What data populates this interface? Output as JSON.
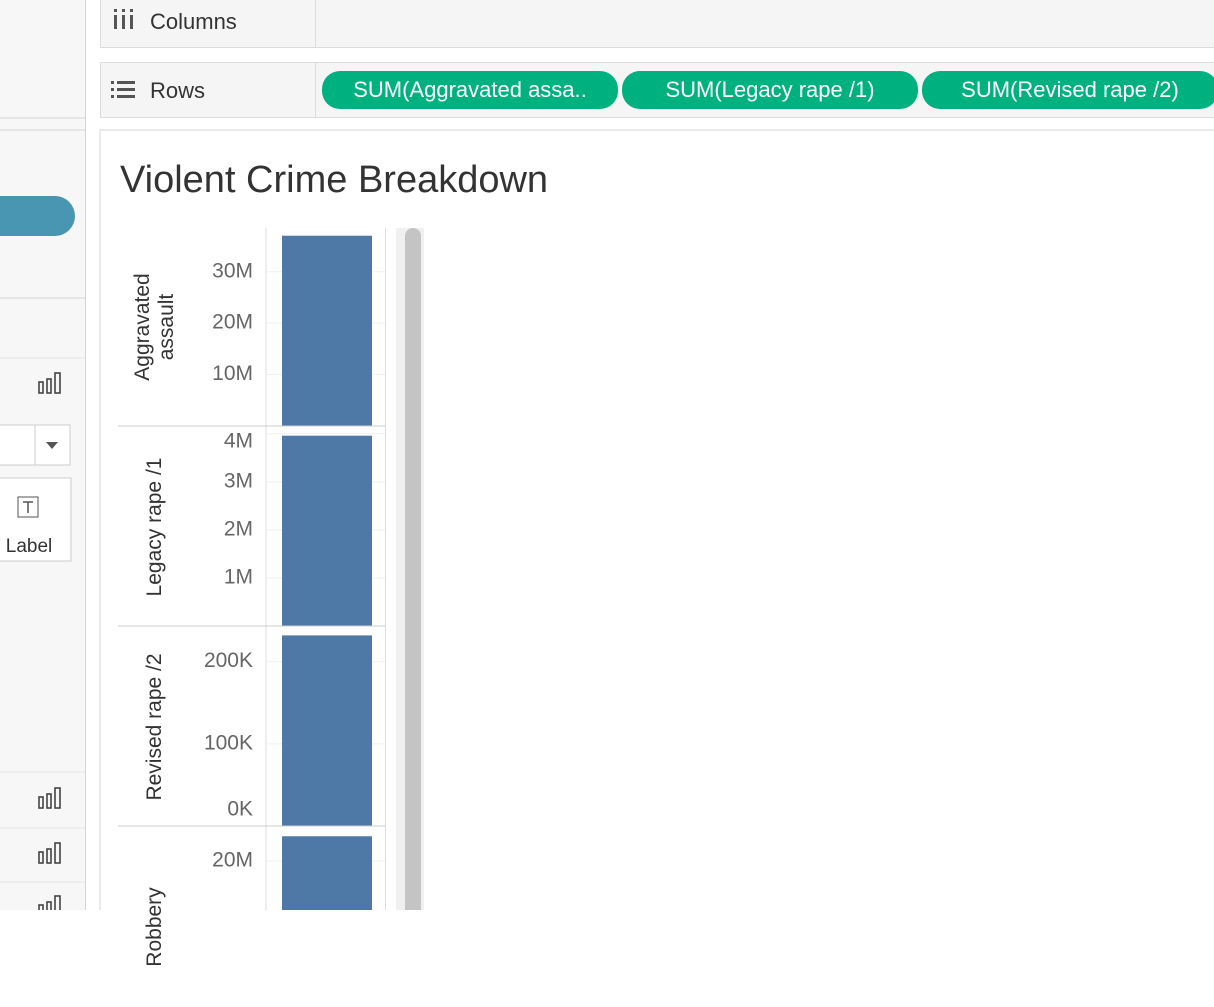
{
  "shelves": {
    "columns": "Columns",
    "rows": "Rows",
    "row_pills": [
      "SUM(Aggravated assa..",
      "SUM(Legacy rape /1)",
      "SUM(Revised rape /2)"
    ]
  },
  "marks_card": {
    "label": "Label"
  },
  "sheet": {
    "title": "Violent Crime Breakdown"
  },
  "chart_data": [
    {
      "type": "bar",
      "ylabel": "Aggravated assault",
      "categories": [
        null
      ],
      "values": [
        37000000
      ],
      "color": "#4e79a7",
      "ylim": [
        0,
        38500000
      ],
      "grid": true,
      "yticks": [
        {
          "value": 10000000,
          "label": "10M"
        },
        {
          "value": 20000000,
          "label": "20M"
        },
        {
          "value": 30000000,
          "label": "30M"
        }
      ]
    },
    {
      "type": "bar",
      "ylabel": "Legacy rape /1",
      "categories": [
        null
      ],
      "values": [
        3960000
      ],
      "color": "#4e79a7",
      "ylim": [
        0,
        4120000
      ],
      "grid": true,
      "yticks": [
        {
          "value": 1000000,
          "label": "1M"
        },
        {
          "value": 2000000,
          "label": "2M"
        },
        {
          "value": 3000000,
          "label": "3M"
        },
        {
          "value": 4000000,
          "label": "4M"
        }
      ]
    },
    {
      "type": "bar",
      "ylabel": "Revised rape /2",
      "categories": [
        null
      ],
      "values": [
        232000
      ],
      "color": "#4e79a7",
      "ylim": [
        0,
        241000
      ],
      "grid": true,
      "yticks": [
        {
          "value": 0,
          "label": "0K"
        },
        {
          "value": 100000,
          "label": "100K"
        },
        {
          "value": 200000,
          "label": "200K"
        }
      ]
    },
    {
      "type": "bar",
      "ylabel": "Robbery",
      "categories": [
        null
      ],
      "values": [
        23000000
      ],
      "color": "#4e79a7",
      "ylim": [
        0,
        24000000
      ],
      "grid": true,
      "yticks": [
        {
          "value": 20000000,
          "label": "20M"
        }
      ]
    }
  ]
}
